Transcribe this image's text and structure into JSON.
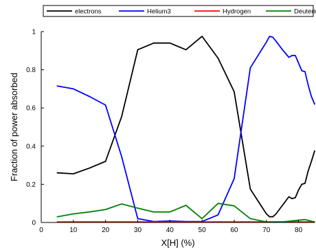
{
  "chart_data": {
    "type": "line",
    "xlabel": "X[H] (%)",
    "ylabel": "Fraction of power absorbed",
    "xlim": [
      0,
      85
    ],
    "ylim": [
      0,
      1
    ],
    "xticks": [
      0,
      10,
      20,
      30,
      40,
      50,
      60,
      70,
      80
    ],
    "yticks": [
      0,
      0.2,
      0.4,
      0.6,
      0.8,
      1
    ],
    "ytick_labels": [
      "0",
      "0.2",
      "0.4",
      "0.6",
      "0.8",
      "1"
    ],
    "grid": false,
    "legend_position": "top, outside, horizontal",
    "series": [
      {
        "name": "electrons",
        "color": "#000000",
        "x": [
          5,
          10,
          15,
          20,
          25,
          30,
          35,
          40,
          45,
          50,
          55,
          60,
          65,
          70,
          71,
          72,
          73,
          75,
          77,
          78,
          79,
          80,
          81,
          82,
          83,
          84,
          85
        ],
        "y": [
          0.26,
          0.255,
          0.285,
          0.32,
          0.555,
          0.905,
          0.94,
          0.94,
          0.905,
          0.975,
          0.86,
          0.685,
          0.175,
          0.045,
          0.03,
          0.03,
          0.045,
          0.09,
          0.135,
          0.125,
          0.13,
          0.17,
          0.2,
          0.205,
          0.27,
          0.32,
          0.375
        ]
      },
      {
        "name": "Helium3",
        "color": "#0000ff",
        "x": [
          5,
          10,
          15,
          20,
          25,
          30,
          35,
          40,
          45,
          50,
          55,
          60,
          65,
          70,
          71,
          72,
          73,
          75,
          77,
          78,
          79,
          80,
          81,
          82,
          83,
          84,
          85
        ],
        "y": [
          0.715,
          0.7,
          0.66,
          0.615,
          0.345,
          0.02,
          0.005,
          0.008,
          0.005,
          0.005,
          0.04,
          0.23,
          0.81,
          0.945,
          0.975,
          0.97,
          0.95,
          0.905,
          0.865,
          0.875,
          0.875,
          0.835,
          0.795,
          0.79,
          0.72,
          0.66,
          0.62
        ]
      },
      {
        "name": "Hydrogen",
        "color": "#ff0000",
        "x": [
          5,
          10,
          15,
          20,
          25,
          30,
          35,
          40,
          45,
          50,
          55,
          60,
          65,
          70,
          75,
          80,
          85
        ],
        "y": [
          0.003,
          0.003,
          0.003,
          0.003,
          0.003,
          0.003,
          0.003,
          0.003,
          0.003,
          0.003,
          0.003,
          0.003,
          0.003,
          0.003,
          0.003,
          0.003,
          0.003
        ]
      },
      {
        "name": "Deuterium",
        "color": "#008000",
        "x": [
          5,
          10,
          15,
          20,
          25,
          30,
          35,
          40,
          45,
          50,
          55,
          60,
          65,
          70,
          75,
          80,
          82,
          85
        ],
        "y": [
          0.03,
          0.045,
          0.055,
          0.068,
          0.097,
          0.075,
          0.055,
          0.055,
          0.09,
          0.02,
          0.1,
          0.087,
          0.02,
          0.003,
          0.003,
          0.012,
          0.015,
          0.003
        ]
      }
    ]
  }
}
